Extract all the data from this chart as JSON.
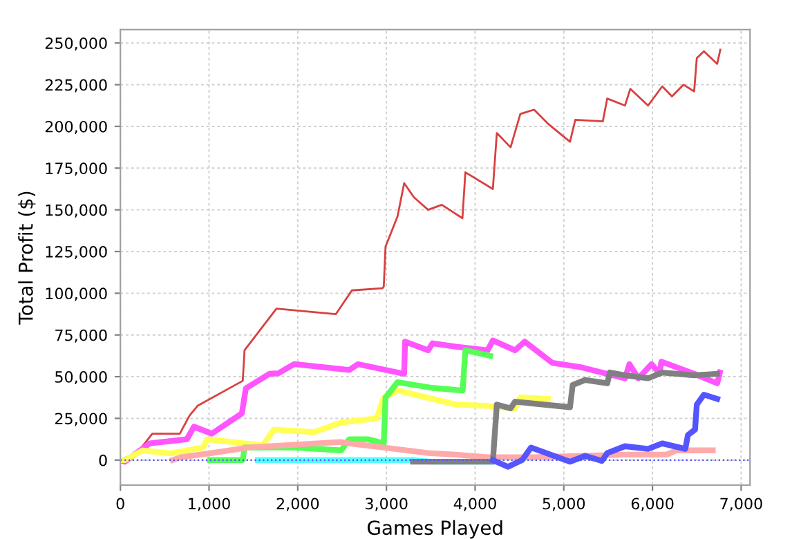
{
  "chart_data": {
    "type": "line",
    "xlabel": "Games Played",
    "ylabel": "Total Profit ($)",
    "xlim": [
      0,
      7100
    ],
    "ylim": [
      -15000,
      258000
    ],
    "xticks": [
      0,
      {
        "value": 1000,
        "label": "1,000"
      },
      {
        "value": 2000,
        "label": "2,000"
      },
      {
        "value": 3000,
        "label": "3,000"
      },
      {
        "value": 4000,
        "label": "4,000"
      },
      {
        "value": 5000,
        "label": "5,000"
      },
      {
        "value": 6000,
        "label": "6,000"
      },
      {
        "value": 7000,
        "label": "7,000"
      }
    ],
    "yticks": [
      0,
      {
        "value": 25000,
        "label": "25,000"
      },
      {
        "value": 50000,
        "label": "50,000"
      },
      {
        "value": 75000,
        "label": "75,000"
      },
      {
        "value": 100000,
        "label": "100,000"
      },
      {
        "value": 125000,
        "label": "125,000"
      },
      {
        "value": 150000,
        "label": "150,000"
      },
      {
        "value": 175000,
        "label": "175,000"
      },
      {
        "value": 200000,
        "label": "200,000"
      },
      {
        "value": 225000,
        "label": "225,000"
      },
      {
        "value": 250000,
        "label": "250,000"
      }
    ],
    "grid": true,
    "line_style": "solid",
    "marker": "none",
    "ref_lines": [
      {
        "axis": "y",
        "value": 0,
        "color": "#5555ff",
        "line_style": "dotted"
      }
    ],
    "series": [
      {
        "color": "#d84040",
        "x": [
          0,
          200,
          360,
          670,
          780,
          870,
          1380,
          1400,
          1760,
          2430,
          2610,
          2955,
          2970,
          2990,
          3125,
          3200,
          3310,
          3470,
          3624,
          3857,
          3890,
          4200,
          4245,
          4400,
          4510,
          4665,
          4820,
          5070,
          5130,
          5440,
          5490,
          5690,
          5750,
          5950,
          6110,
          6220,
          6350,
          6470,
          6500,
          6580,
          6730,
          6765
        ],
        "values": [
          0,
          5000,
          15800,
          15800,
          26700,
          32500,
          47500,
          65800,
          90800,
          87500,
          101700,
          103000,
          104000,
          128000,
          146000,
          166000,
          157500,
          150000,
          153000,
          145000,
          172500,
          162500,
          196000,
          187500,
          207500,
          210000,
          201700,
          190800,
          204000,
          203000,
          216700,
          212500,
          222500,
          212500,
          224000,
          218000,
          225000,
          221000,
          241000,
          245000,
          237500,
          246000
        ]
      },
      {
        "color": "#ff55ff",
        "x": [
          0,
          50,
          330,
          750,
          830,
          1030,
          1370,
          1415,
          1680,
          1780,
          1960,
          2580,
          2680,
          3200,
          3210,
          3470,
          3520,
          3780,
          4140,
          4200,
          4450,
          4560,
          4870,
          5180,
          5690,
          5740,
          5840,
          5990,
          6080,
          6100,
          6470,
          6730,
          6760
        ],
        "values": [
          0,
          -1000,
          10000,
          12500,
          20000,
          15800,
          28000,
          43000,
          51700,
          52000,
          57500,
          54000,
          57500,
          51700,
          71000,
          65800,
          70000,
          68000,
          65800,
          71700,
          65800,
          71000,
          58300,
          55800,
          49000,
          57500,
          49000,
          57500,
          51700,
          59000,
          51700,
          46000,
          52500
        ]
      },
      {
        "color": "#ffff55",
        "x": [
          0,
          50,
          250,
          560,
          930,
          980,
          1400,
          1610,
          1730,
          2180,
          2490,
          2890,
          2970,
          3130,
          3780,
          4140,
          4450,
          4510,
          4820
        ],
        "values": [
          0,
          0,
          5800,
          4000,
          7500,
          12500,
          10000,
          9000,
          18300,
          16700,
          22500,
          25000,
          37500,
          41700,
          33300,
          32500,
          30800,
          37500,
          36700
        ]
      },
      {
        "color": "#55ff55",
        "x": [
          1010,
          1380,
          1400,
          1960,
          2490,
          2580,
          2790,
          2970,
          2990,
          3125,
          3515,
          3860,
          3890,
          4170
        ],
        "values": [
          0,
          0,
          7500,
          7500,
          5800,
          12500,
          12500,
          10000,
          37500,
          46700,
          43300,
          41700,
          65800,
          62500
        ]
      },
      {
        "color": "#ffaaaa",
        "x": [
          590,
          680,
          1030,
          1440,
          2220,
          2480,
          2580,
          2970,
          3470,
          3780,
          4140,
          4660,
          5690,
          6160,
          6270,
          6680
        ],
        "values": [
          0,
          1700,
          4200,
          7500,
          10000,
          10800,
          10000,
          7500,
          4200,
          3300,
          1700,
          1700,
          3300,
          3300,
          5800,
          5800
        ]
      },
      {
        "color": "#55ffff",
        "x": [
          1550,
          3300,
          3500,
          4200
        ],
        "values": [
          0,
          0,
          -1000,
          -1000
        ]
      },
      {
        "color": "#808080",
        "x": [
          3300,
          4200,
          4245,
          4400,
          4450,
          5070,
          5100,
          5240,
          5490,
          5520,
          5690,
          5950,
          6110,
          6470,
          6730
        ],
        "values": [
          -1000,
          -1000,
          33300,
          31000,
          35000,
          31700,
          45000,
          48000,
          46000,
          52500,
          50800,
          49000,
          52500,
          50800,
          51700
        ]
      },
      {
        "color": "#5555ff",
        "x": [
          4200,
          4370,
          4530,
          4630,
          5070,
          5240,
          5430,
          5490,
          5690,
          5950,
          6110,
          6370,
          6400,
          6480,
          6500,
          6580,
          6730
        ],
        "values": [
          0,
          -4000,
          0,
          7500,
          -1000,
          2500,
          -500,
          4200,
          8300,
          6700,
          10000,
          6700,
          15000,
          18300,
          33300,
          39200,
          36700
        ]
      }
    ]
  }
}
